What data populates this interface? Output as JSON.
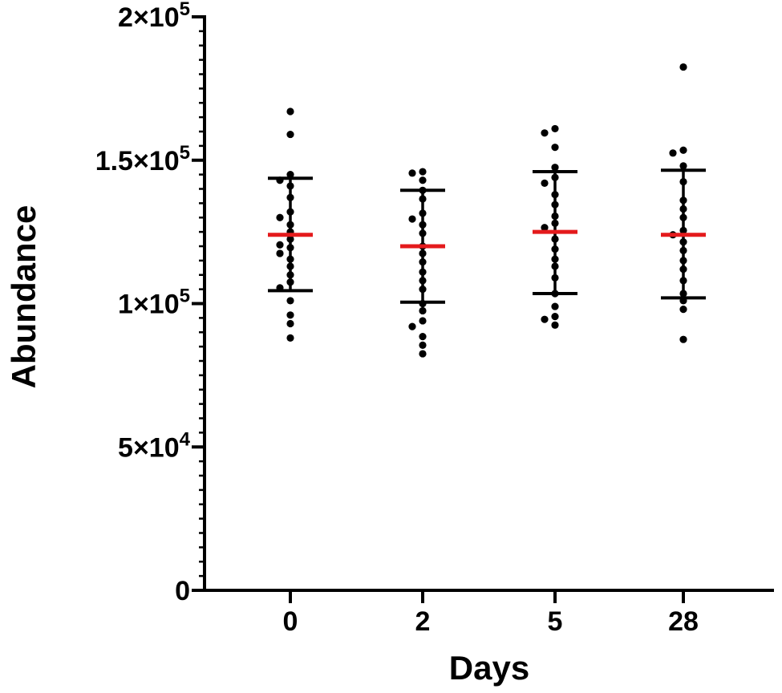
{
  "chart_data": {
    "type": "scatter",
    "xlabel": "Days",
    "ylabel": "Abundance",
    "categories": [
      "0",
      "2",
      "5",
      "28"
    ],
    "ylim": [
      0,
      200000
    ],
    "y_ticks": [
      {
        "value": 0,
        "mantissa": "0",
        "exp": ""
      },
      {
        "value": 50000,
        "mantissa": "5×10",
        "exp": "4"
      },
      {
        "value": 100000,
        "mantissa": "1×10",
        "exp": "5"
      },
      {
        "value": 150000,
        "mantissa": "1.5×10",
        "exp": "5"
      },
      {
        "value": 200000,
        "mantissa": "2×10",
        "exp": "5"
      }
    ],
    "minor_ticks_per_major": 10,
    "grid": false,
    "colors": {
      "points": "#000000",
      "mean": "#e41a1c",
      "error_bar": "#000000"
    },
    "groups": [
      {
        "category": "0",
        "mean": 124000,
        "sd_low": 104500,
        "sd_high": 143700,
        "points": [
          167000,
          159000,
          145000,
          143000,
          141000,
          137000,
          132000,
          130000,
          127500,
          125000,
          122500,
          120500,
          119500,
          117500,
          115500,
          113000,
          110000,
          107500,
          105500,
          101000,
          96000,
          93000,
          88000
        ]
      },
      {
        "category": "2",
        "mean": 120000,
        "sd_low": 100500,
        "sd_high": 139500,
        "points": [
          146000,
          145500,
          143000,
          139500,
          136500,
          131500,
          129500,
          127500,
          124500,
          120000,
          117500,
          114500,
          111000,
          108000,
          105000,
          100000,
          97500,
          94000,
          92000,
          88500,
          85500,
          82500
        ]
      },
      {
        "category": "5",
        "mean": 125000,
        "sd_low": 103500,
        "sd_high": 146000,
        "points": [
          161000,
          159500,
          154500,
          147500,
          144000,
          142000,
          138000,
          134500,
          130500,
          128000,
          126500,
          122500,
          119000,
          115500,
          113000,
          109000,
          103500,
          99000,
          95500,
          94500,
          92500
        ]
      },
      {
        "category": "28",
        "mean": 124000,
        "sd_low": 102000,
        "sd_high": 146500,
        "points": [
          182500,
          153500,
          152500,
          148000,
          142500,
          136000,
          133000,
          130000,
          125500,
          124000,
          121500,
          118500,
          115000,
          112000,
          108000,
          103500,
          101000,
          98000,
          87500
        ]
      }
    ]
  }
}
